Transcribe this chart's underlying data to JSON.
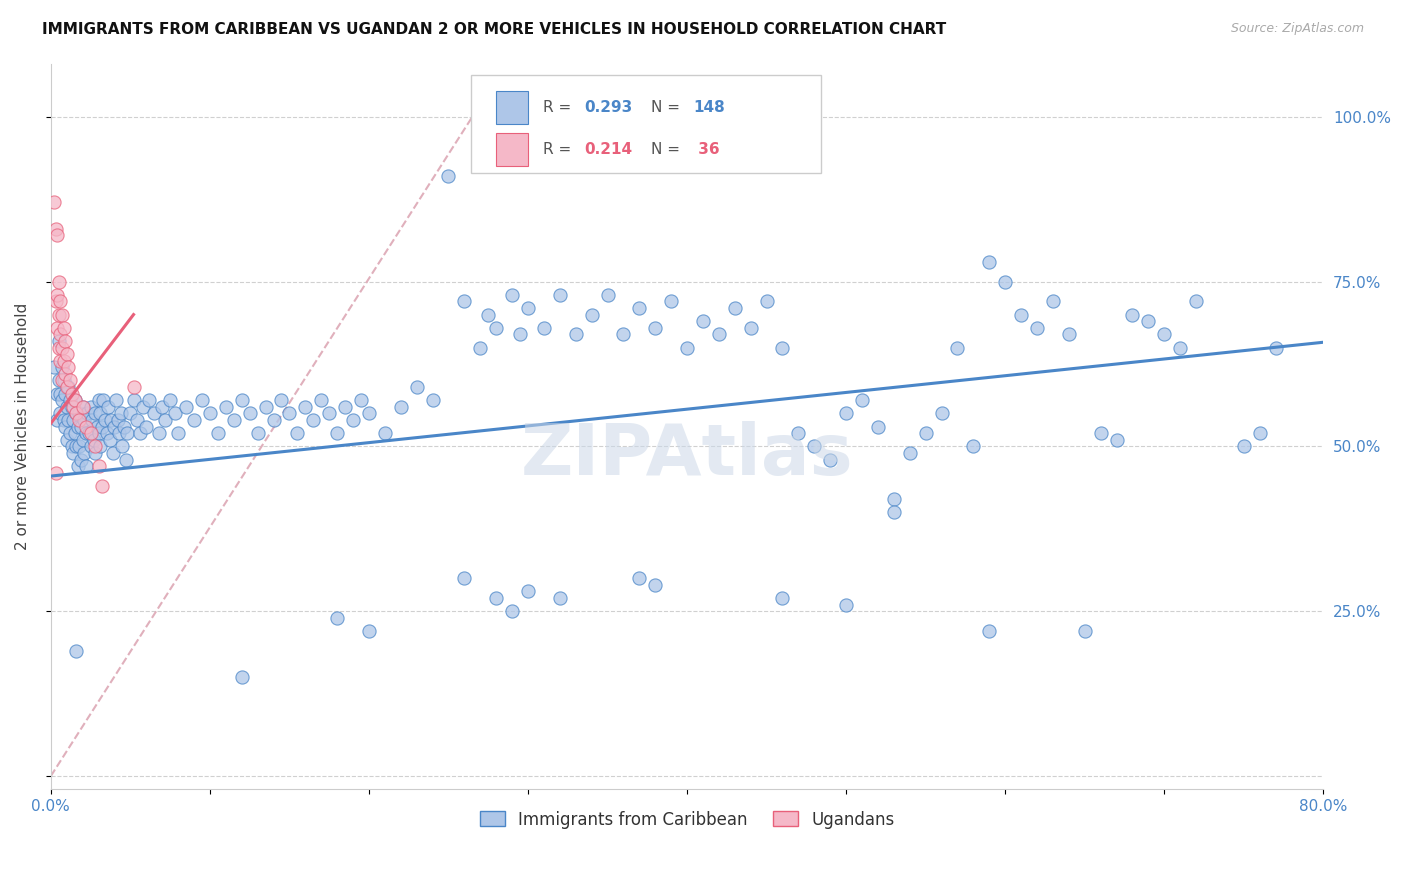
{
  "title": "IMMIGRANTS FROM CARIBBEAN VS UGANDAN 2 OR MORE VEHICLES IN HOUSEHOLD CORRELATION CHART",
  "source": "Source: ZipAtlas.com",
  "ylabel": "2 or more Vehicles in Household",
  "xlim": [
    0.0,
    0.8
  ],
  "ylim": [
    -0.02,
    1.08
  ],
  "label1": "Immigrants from Caribbean",
  "label2": "Ugandans",
  "color1": "#aec6e8",
  "color2": "#f5b8c8",
  "line_color1": "#4a86c8",
  "line_color2": "#e8607a",
  "line_dash_color": "#e0b0bc",
  "r_color": "#4a86c8",
  "watermark": "ZIPAtlas",
  "blue_scatter": [
    [
      0.002,
      0.62
    ],
    [
      0.004,
      0.58
    ],
    [
      0.004,
      0.54
    ],
    [
      0.005,
      0.66
    ],
    [
      0.005,
      0.6
    ],
    [
      0.006,
      0.58
    ],
    [
      0.006,
      0.55
    ],
    [
      0.007,
      0.62
    ],
    [
      0.007,
      0.57
    ],
    [
      0.008,
      0.6
    ],
    [
      0.008,
      0.54
    ],
    [
      0.009,
      0.58
    ],
    [
      0.009,
      0.53
    ],
    [
      0.01,
      0.56
    ],
    [
      0.01,
      0.51
    ],
    [
      0.011,
      0.59
    ],
    [
      0.011,
      0.54
    ],
    [
      0.012,
      0.57
    ],
    [
      0.012,
      0.52
    ],
    [
      0.013,
      0.56
    ],
    [
      0.013,
      0.5
    ],
    [
      0.014,
      0.54
    ],
    [
      0.014,
      0.49
    ],
    [
      0.015,
      0.57
    ],
    [
      0.015,
      0.52
    ],
    [
      0.016,
      0.55
    ],
    [
      0.016,
      0.5
    ],
    [
      0.017,
      0.53
    ],
    [
      0.017,
      0.47
    ],
    [
      0.018,
      0.55
    ],
    [
      0.018,
      0.5
    ],
    [
      0.019,
      0.53
    ],
    [
      0.019,
      0.48
    ],
    [
      0.02,
      0.56
    ],
    [
      0.02,
      0.51
    ],
    [
      0.021,
      0.54
    ],
    [
      0.021,
      0.49
    ],
    [
      0.022,
      0.52
    ],
    [
      0.022,
      0.47
    ],
    [
      0.023,
      0.55
    ],
    [
      0.024,
      0.52
    ],
    [
      0.025,
      0.56
    ],
    [
      0.025,
      0.5
    ],
    [
      0.026,
      0.54
    ],
    [
      0.027,
      0.51
    ],
    [
      0.028,
      0.55
    ],
    [
      0.028,
      0.49
    ],
    [
      0.029,
      0.53
    ],
    [
      0.03,
      0.57
    ],
    [
      0.03,
      0.52
    ],
    [
      0.031,
      0.55
    ],
    [
      0.031,
      0.5
    ],
    [
      0.032,
      0.53
    ],
    [
      0.033,
      0.57
    ],
    [
      0.034,
      0.54
    ],
    [
      0.035,
      0.52
    ],
    [
      0.036,
      0.56
    ],
    [
      0.037,
      0.51
    ],
    [
      0.038,
      0.54
    ],
    [
      0.039,
      0.49
    ],
    [
      0.04,
      0.53
    ],
    [
      0.041,
      0.57
    ],
    [
      0.042,
      0.54
    ],
    [
      0.043,
      0.52
    ],
    [
      0.044,
      0.55
    ],
    [
      0.045,
      0.5
    ],
    [
      0.046,
      0.53
    ],
    [
      0.047,
      0.48
    ],
    [
      0.048,
      0.52
    ],
    [
      0.05,
      0.55
    ],
    [
      0.052,
      0.57
    ],
    [
      0.054,
      0.54
    ],
    [
      0.056,
      0.52
    ],
    [
      0.058,
      0.56
    ],
    [
      0.06,
      0.53
    ],
    [
      0.062,
      0.57
    ],
    [
      0.065,
      0.55
    ],
    [
      0.068,
      0.52
    ],
    [
      0.07,
      0.56
    ],
    [
      0.072,
      0.54
    ],
    [
      0.075,
      0.57
    ],
    [
      0.078,
      0.55
    ],
    [
      0.08,
      0.52
    ],
    [
      0.085,
      0.56
    ],
    [
      0.09,
      0.54
    ],
    [
      0.095,
      0.57
    ],
    [
      0.1,
      0.55
    ],
    [
      0.105,
      0.52
    ],
    [
      0.11,
      0.56
    ],
    [
      0.115,
      0.54
    ],
    [
      0.12,
      0.57
    ],
    [
      0.125,
      0.55
    ],
    [
      0.13,
      0.52
    ],
    [
      0.135,
      0.56
    ],
    [
      0.14,
      0.54
    ],
    [
      0.145,
      0.57
    ],
    [
      0.15,
      0.55
    ],
    [
      0.155,
      0.52
    ],
    [
      0.16,
      0.56
    ],
    [
      0.165,
      0.54
    ],
    [
      0.17,
      0.57
    ],
    [
      0.175,
      0.55
    ],
    [
      0.18,
      0.52
    ],
    [
      0.185,
      0.56
    ],
    [
      0.19,
      0.54
    ],
    [
      0.195,
      0.57
    ],
    [
      0.2,
      0.55
    ],
    [
      0.21,
      0.52
    ],
    [
      0.22,
      0.56
    ],
    [
      0.23,
      0.59
    ],
    [
      0.24,
      0.57
    ],
    [
      0.25,
      0.91
    ],
    [
      0.26,
      0.72
    ],
    [
      0.27,
      0.65
    ],
    [
      0.275,
      0.7
    ],
    [
      0.28,
      0.68
    ],
    [
      0.29,
      0.73
    ],
    [
      0.295,
      0.67
    ],
    [
      0.3,
      0.71
    ],
    [
      0.31,
      0.68
    ],
    [
      0.32,
      0.73
    ],
    [
      0.33,
      0.67
    ],
    [
      0.34,
      0.7
    ],
    [
      0.35,
      0.73
    ],
    [
      0.36,
      0.67
    ],
    [
      0.37,
      0.71
    ],
    [
      0.38,
      0.68
    ],
    [
      0.39,
      0.72
    ],
    [
      0.4,
      0.65
    ],
    [
      0.41,
      0.69
    ],
    [
      0.42,
      0.67
    ],
    [
      0.43,
      0.71
    ],
    [
      0.44,
      0.68
    ],
    [
      0.45,
      0.72
    ],
    [
      0.46,
      0.65
    ],
    [
      0.47,
      0.52
    ],
    [
      0.48,
      0.5
    ],
    [
      0.49,
      0.48
    ],
    [
      0.5,
      0.55
    ],
    [
      0.51,
      0.57
    ],
    [
      0.52,
      0.53
    ],
    [
      0.53,
      0.42
    ],
    [
      0.54,
      0.49
    ],
    [
      0.55,
      0.52
    ],
    [
      0.56,
      0.55
    ],
    [
      0.57,
      0.65
    ],
    [
      0.58,
      0.5
    ],
    [
      0.59,
      0.78
    ],
    [
      0.6,
      0.75
    ],
    [
      0.61,
      0.7
    ],
    [
      0.62,
      0.68
    ],
    [
      0.63,
      0.72
    ],
    [
      0.64,
      0.67
    ],
    [
      0.65,
      0.22
    ],
    [
      0.66,
      0.52
    ],
    [
      0.67,
      0.51
    ],
    [
      0.68,
      0.7
    ],
    [
      0.69,
      0.69
    ],
    [
      0.7,
      0.67
    ],
    [
      0.71,
      0.65
    ],
    [
      0.72,
      0.72
    ],
    [
      0.016,
      0.19
    ],
    [
      0.12,
      0.15
    ],
    [
      0.18,
      0.24
    ],
    [
      0.2,
      0.22
    ],
    [
      0.26,
      0.3
    ],
    [
      0.28,
      0.27
    ],
    [
      0.29,
      0.25
    ],
    [
      0.3,
      0.28
    ],
    [
      0.32,
      0.27
    ],
    [
      0.37,
      0.3
    ],
    [
      0.38,
      0.29
    ],
    [
      0.46,
      0.27
    ],
    [
      0.5,
      0.26
    ],
    [
      0.53,
      0.4
    ],
    [
      0.59,
      0.22
    ],
    [
      0.75,
      0.5
    ],
    [
      0.76,
      0.52
    ],
    [
      0.77,
      0.65
    ]
  ],
  "pink_scatter": [
    [
      0.002,
      0.87
    ],
    [
      0.003,
      0.83
    ],
    [
      0.003,
      0.72
    ],
    [
      0.004,
      0.82
    ],
    [
      0.004,
      0.73
    ],
    [
      0.004,
      0.68
    ],
    [
      0.005,
      0.75
    ],
    [
      0.005,
      0.7
    ],
    [
      0.005,
      0.65
    ],
    [
      0.006,
      0.72
    ],
    [
      0.006,
      0.67
    ],
    [
      0.006,
      0.63
    ],
    [
      0.007,
      0.7
    ],
    [
      0.007,
      0.65
    ],
    [
      0.007,
      0.6
    ],
    [
      0.008,
      0.68
    ],
    [
      0.008,
      0.63
    ],
    [
      0.009,
      0.66
    ],
    [
      0.009,
      0.61
    ],
    [
      0.01,
      0.64
    ],
    [
      0.01,
      0.59
    ],
    [
      0.011,
      0.62
    ],
    [
      0.012,
      0.6
    ],
    [
      0.013,
      0.58
    ],
    [
      0.014,
      0.56
    ],
    [
      0.015,
      0.57
    ],
    [
      0.016,
      0.55
    ],
    [
      0.018,
      0.54
    ],
    [
      0.02,
      0.56
    ],
    [
      0.022,
      0.53
    ],
    [
      0.025,
      0.52
    ],
    [
      0.028,
      0.5
    ],
    [
      0.03,
      0.47
    ],
    [
      0.032,
      0.44
    ],
    [
      0.052,
      0.59
    ],
    [
      0.003,
      0.46
    ]
  ],
  "blue_line_x": [
    0.0,
    0.8
  ],
  "blue_line_y": [
    0.455,
    0.658
  ],
  "pink_line_x": [
    0.0,
    0.052
  ],
  "pink_line_y": [
    0.535,
    0.7
  ],
  "dash_line_x": [
    0.0,
    0.265
  ],
  "dash_line_y": [
    0.0,
    1.0
  ],
  "xticks": [
    0.0,
    0.1,
    0.2,
    0.3,
    0.4,
    0.5,
    0.6,
    0.7,
    0.8
  ],
  "yticks": [
    0.0,
    0.25,
    0.5,
    0.75,
    1.0
  ],
  "ytick_labels": [
    "",
    "25.0%",
    "50.0%",
    "75.0%",
    "100.0%"
  ]
}
